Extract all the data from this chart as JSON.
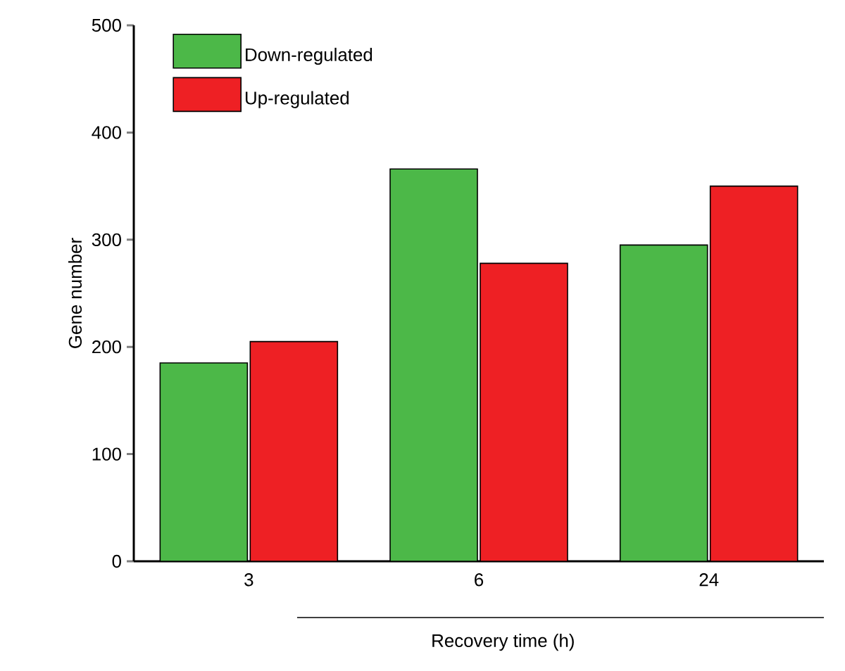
{
  "chart_data": {
    "type": "bar",
    "xlabel": "Recovery time (h)",
    "ylabel": "Gene number",
    "categories": [
      "3",
      "6",
      "24"
    ],
    "series": [
      {
        "name": "Down-regulated",
        "color": "#4cb848",
        "values": [
          185,
          366,
          295
        ]
      },
      {
        "name": "Up-regulated",
        "color": "#ee2024",
        "values": [
          205,
          278,
          350
        ]
      }
    ],
    "ylim": [
      0,
      500
    ],
    "yticks": [
      0,
      100,
      200,
      300,
      400,
      500
    ],
    "grid": false,
    "legend": "top left"
  }
}
